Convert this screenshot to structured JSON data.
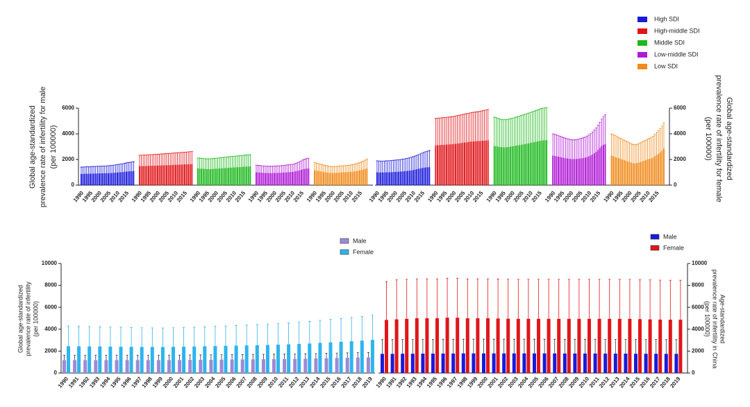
{
  "chart_data": [
    {
      "type": "bar",
      "y_label": [
        "Global age-standardized",
        "prevalence rate of infertility for male",
        "(per 100000)"
      ],
      "y2_label": [
        "Global age-standardized",
        "prevalence rate of infertility for female",
        "(per 100000)"
      ],
      "x": [
        1990,
        1991,
        1992,
        1993,
        1994,
        1995,
        1996,
        1997,
        1998,
        1999,
        2000,
        2001,
        2002,
        2003,
        2004,
        2005,
        2006,
        2007,
        2008,
        2009,
        2010,
        2011,
        2012,
        2013,
        2014,
        2015,
        2016,
        2017,
        2018,
        2019
      ],
      "xticks": [
        1990,
        1995,
        2000,
        2005,
        2010,
        2015
      ],
      "ylim": [
        0,
        6000
      ],
      "yticks": [
        0,
        2000,
        4000,
        6000
      ],
      "y2lim": [
        0,
        6000
      ],
      "y2ticks": [
        0,
        2000,
        4000,
        6000
      ],
      "series": [
        {
          "name": "High SDI",
          "color": "#1a1adb",
          "male_values": [
            880,
            880,
            885,
            890,
            890,
            895,
            900,
            905,
            905,
            910,
            915,
            920,
            920,
            925,
            930,
            935,
            940,
            950,
            960,
            970,
            985,
            1000,
            1010,
            1020,
            1040,
            1060,
            1070,
            1080,
            1090,
            1100
          ],
          "male_errors": [
            530,
            530,
            535,
            540,
            540,
            545,
            550,
            550,
            555,
            560,
            560,
            565,
            565,
            570,
            575,
            580,
            585,
            590,
            600,
            610,
            620,
            630,
            640,
            650,
            660,
            680,
            690,
            700,
            710,
            720
          ],
          "female_values": [
            1000,
            990,
            990,
            990,
            990,
            1000,
            1000,
            1000,
            1010,
            1020,
            1030,
            1040,
            1050,
            1060,
            1070,
            1080,
            1100,
            1110,
            1130,
            1150,
            1180,
            1210,
            1240,
            1270,
            1300,
            1330,
            1360,
            1380,
            1390,
            1400
          ],
          "female_errors": [
            900,
            895,
            890,
            890,
            890,
            895,
            900,
            905,
            910,
            915,
            920,
            925,
            930,
            940,
            950,
            960,
            975,
            990,
            1005,
            1020,
            1040,
            1060,
            1080,
            1110,
            1140,
            1170,
            1200,
            1230,
            1260,
            1300
          ]
        },
        {
          "name": "High-middle SDI",
          "color": "#e0161a",
          "male_values": [
            1480,
            1480,
            1490,
            1490,
            1500,
            1500,
            1510,
            1510,
            1520,
            1520,
            1530,
            1530,
            1540,
            1540,
            1550,
            1550,
            1560,
            1560,
            1570,
            1580,
            1590,
            1590,
            1600,
            1600,
            1610,
            1620,
            1620,
            1630,
            1640,
            1640
          ],
          "male_errors": [
            850,
            850,
            855,
            860,
            860,
            865,
            870,
            870,
            875,
            880,
            880,
            885,
            890,
            895,
            900,
            905,
            910,
            915,
            920,
            925,
            930,
            935,
            940,
            945,
            950,
            955,
            960,
            965,
            970,
            980
          ],
          "female_values": [
            3100,
            3110,
            3120,
            3130,
            3140,
            3150,
            3160,
            3170,
            3180,
            3190,
            3200,
            3220,
            3240,
            3260,
            3280,
            3300,
            3320,
            3340,
            3360,
            3380,
            3400,
            3410,
            3420,
            3430,
            3440,
            3450,
            3460,
            3470,
            3480,
            3490
          ],
          "female_errors": [
            2100,
            2100,
            2110,
            2110,
            2120,
            2120,
            2130,
            2130,
            2140,
            2150,
            2160,
            2170,
            2180,
            2190,
            2200,
            2210,
            2220,
            2230,
            2240,
            2250,
            2260,
            2270,
            2280,
            2290,
            2300,
            2320,
            2340,
            2360,
            2380,
            2400
          ]
        },
        {
          "name": "Middle SDI",
          "color": "#1cb81c",
          "male_values": [
            1300,
            1290,
            1280,
            1270,
            1260,
            1250,
            1250,
            1250,
            1260,
            1270,
            1280,
            1290,
            1300,
            1310,
            1320,
            1330,
            1340,
            1350,
            1360,
            1370,
            1380,
            1390,
            1400,
            1410,
            1420,
            1430,
            1440,
            1450,
            1450,
            1460
          ],
          "male_errors": [
            820,
            815,
            810,
            805,
            800,
            800,
            800,
            805,
            810,
            815,
            820,
            825,
            830,
            835,
            840,
            845,
            850,
            855,
            860,
            865,
            870,
            875,
            880,
            885,
            890,
            895,
            900,
            905,
            910,
            915
          ],
          "female_values": [
            3050,
            3030,
            3000,
            2980,
            2960,
            2950,
            2950,
            2960,
            2980,
            3000,
            3020,
            3050,
            3080,
            3100,
            3120,
            3150,
            3180,
            3200,
            3230,
            3260,
            3290,
            3320,
            3350,
            3380,
            3410,
            3440,
            3470,
            3490,
            3500,
            3510
          ],
          "female_errors": [
            2250,
            2230,
            2200,
            2180,
            2160,
            2150,
            2150,
            2160,
            2170,
            2180,
            2190,
            2200,
            2220,
            2240,
            2260,
            2280,
            2300,
            2320,
            2340,
            2360,
            2380,
            2400,
            2420,
            2440,
            2460,
            2480,
            2500,
            2510,
            2520,
            2530
          ]
        },
        {
          "name": "Low-middle SDI",
          "color": "#b01ad6",
          "male_values": [
            1000,
            990,
            980,
            970,
            960,
            950,
            950,
            940,
            940,
            940,
            950,
            950,
            960,
            960,
            970,
            980,
            990,
            1000,
            1010,
            1020,
            1030,
            1050,
            1080,
            1110,
            1150,
            1200,
            1240,
            1270,
            1290,
            1300
          ],
          "male_errors": [
            560,
            555,
            550,
            545,
            540,
            535,
            530,
            530,
            530,
            530,
            535,
            540,
            545,
            550,
            555,
            560,
            565,
            570,
            575,
            580,
            590,
            600,
            620,
            640,
            670,
            700,
            730,
            760,
            790,
            800
          ],
          "female_values": [
            2300,
            2280,
            2250,
            2220,
            2190,
            2160,
            2130,
            2100,
            2080,
            2060,
            2040,
            2030,
            2030,
            2040,
            2060,
            2080,
            2100,
            2120,
            2150,
            2200,
            2250,
            2320,
            2400,
            2500,
            2600,
            2750,
            2900,
            3050,
            3150,
            3200
          ],
          "female_errors": [
            1700,
            1680,
            1660,
            1640,
            1620,
            1600,
            1580,
            1560,
            1540,
            1520,
            1510,
            1500,
            1500,
            1510,
            1520,
            1540,
            1560,
            1580,
            1600,
            1630,
            1660,
            1700,
            1750,
            1800,
            1860,
            1930,
            2000,
            2100,
            2200,
            2300
          ]
        },
        {
          "name": "Low SDI",
          "color": "#f08a1a",
          "male_values": [
            1150,
            1130,
            1110,
            1080,
            1050,
            1020,
            1000,
            980,
            960,
            950,
            950,
            950,
            960,
            970,
            980,
            990,
            1000,
            1000,
            1010,
            1020,
            1030,
            1050,
            1070,
            1090,
            1120,
            1150,
            1180,
            1210,
            1250,
            1300
          ],
          "male_errors": [
            600,
            590,
            580,
            570,
            560,
            550,
            540,
            530,
            520,
            510,
            500,
            500,
            500,
            505,
            510,
            515,
            520,
            525,
            530,
            535,
            540,
            550,
            560,
            570,
            590,
            610,
            640,
            670,
            700,
            740
          ],
          "female_values": [
            2300,
            2250,
            2200,
            2150,
            2100,
            2050,
            2000,
            1950,
            1900,
            1850,
            1800,
            1750,
            1720,
            1700,
            1720,
            1750,
            1800,
            1850,
            1900,
            1950,
            2000,
            2050,
            2100,
            2150,
            2250,
            2350,
            2450,
            2550,
            2700,
            2850
          ],
          "female_errors": [
            1700,
            1680,
            1660,
            1640,
            1620,
            1600,
            1580,
            1560,
            1540,
            1520,
            1500,
            1480,
            1460,
            1450,
            1460,
            1480,
            1500,
            1520,
            1540,
            1560,
            1580,
            1600,
            1630,
            1660,
            1700,
            1750,
            1800,
            1850,
            1900,
            2000
          ]
        }
      ]
    },
    {
      "type": "bar",
      "y_label": [
        "Global age-standardized",
        "prevalence rate of infertility",
        "(per 100000)"
      ],
      "x": [
        1990,
        1991,
        1992,
        1993,
        1994,
        1995,
        1996,
        1997,
        1998,
        1999,
        2000,
        2001,
        2002,
        2003,
        2004,
        2005,
        2006,
        2007,
        2008,
        2009,
        2010,
        2011,
        2012,
        2013,
        2014,
        2015,
        2016,
        2017,
        2018,
        2019
      ],
      "ylim": [
        0,
        10000
      ],
      "yticks": [
        0,
        2000,
        4000,
        6000,
        8000,
        10000
      ],
      "series": [
        {
          "name": "Male",
          "color": "#9e8ad6",
          "values": [
            1180,
            1180,
            1180,
            1180,
            1180,
            1180,
            1180,
            1180,
            1180,
            1180,
            1190,
            1190,
            1200,
            1200,
            1210,
            1220,
            1230,
            1240,
            1250,
            1260,
            1270,
            1280,
            1290,
            1310,
            1330,
            1350,
            1370,
            1390,
            1410,
            1430
          ],
          "errors": [
            450,
            450,
            450,
            450,
            450,
            450,
            450,
            450,
            450,
            450,
            450,
            450,
            450,
            450,
            450,
            450,
            450,
            450,
            450,
            450,
            450,
            450,
            450,
            450,
            450,
            450,
            450,
            450,
            450,
            450
          ]
        },
        {
          "name": "Female",
          "color": "#2eb4ee",
          "values": [
            2450,
            2440,
            2430,
            2420,
            2410,
            2400,
            2390,
            2380,
            2380,
            2380,
            2390,
            2400,
            2420,
            2440,
            2460,
            2480,
            2500,
            2520,
            2540,
            2560,
            2590,
            2620,
            2660,
            2700,
            2750,
            2800,
            2850,
            2900,
            2960,
            3030
          ],
          "errors": [
            1850,
            1840,
            1820,
            1800,
            1790,
            1780,
            1760,
            1750,
            1740,
            1730,
            1740,
            1750,
            1760,
            1780,
            1800,
            1820,
            1840,
            1860,
            1880,
            1900,
            1920,
            1950,
            1990,
            2020,
            2060,
            2100,
            2130,
            2170,
            2210,
            2270
          ]
        }
      ]
    },
    {
      "type": "bar",
      "y2_label": [
        "Age-standardized",
        "prevalence rate of infertility in China",
        "(per 100000)"
      ],
      "x": [
        1990,
        1991,
        1992,
        1993,
        1994,
        1995,
        1996,
        1997,
        1998,
        1999,
        2000,
        2001,
        2002,
        2003,
        2004,
        2005,
        2006,
        2007,
        2008,
        2009,
        2010,
        2011,
        2012,
        2013,
        2014,
        2015,
        2016,
        2017,
        2018,
        2019
      ],
      "y2lim": [
        0,
        10000
      ],
      "y2ticks": [
        0,
        2000,
        4000,
        6000,
        8000,
        10000
      ],
      "series": [
        {
          "name": "Male",
          "color": "#1a1adb",
          "axis": "y2",
          "values": [
            1750,
            1750,
            1760,
            1760,
            1770,
            1770,
            1780,
            1780,
            1790,
            1790,
            1790,
            1790,
            1790,
            1790,
            1790,
            1790,
            1790,
            1790,
            1780,
            1780,
            1780,
            1780,
            1770,
            1770,
            1770,
            1760,
            1760,
            1760,
            1750,
            1750
          ],
          "errors": [
            1300,
            1300,
            1300,
            1300,
            1300,
            1300,
            1300,
            1300,
            1300,
            1300,
            1300,
            1300,
            1300,
            1300,
            1300,
            1300,
            1300,
            1300,
            1300,
            1300,
            1300,
            1300,
            1300,
            1300,
            1300,
            1300,
            1300,
            1300,
            1300,
            1300
          ]
        },
        {
          "name": "Female",
          "color": "#e0161a",
          "axis": "y2",
          "values": [
            4850,
            4900,
            4950,
            5000,
            5000,
            5000,
            5050,
            5050,
            5000,
            5000,
            5000,
            4980,
            4960,
            4950,
            4950,
            4950,
            4950,
            4950,
            4950,
            4950,
            4950,
            4950,
            4950,
            4950,
            4950,
            4920,
            4900,
            4880,
            4870,
            4870
          ],
          "errors": [
            3500,
            3600,
            3600,
            3600,
            3600,
            3600,
            3600,
            3600,
            3600,
            3600,
            3600,
            3600,
            3600,
            3600,
            3600,
            3600,
            3600,
            3600,
            3600,
            3600,
            3600,
            3600,
            3600,
            3600,
            3600,
            3600,
            3600,
            3600,
            3600,
            3600
          ]
        }
      ]
    }
  ]
}
